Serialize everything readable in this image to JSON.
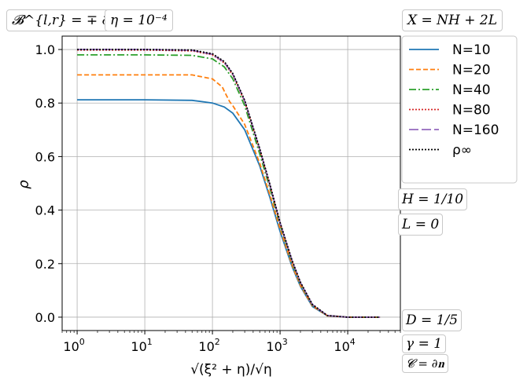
{
  "chart_data": {
    "type": "line",
    "xscale": "log",
    "xlim": [
      0.6,
      60000
    ],
    "ylim": [
      -0.05,
      1.05
    ],
    "xticks": [
      "10^0",
      "10^1",
      "10^2",
      "10^3",
      "10^4"
    ],
    "yticks": [
      "0.0",
      "0.2",
      "0.4",
      "0.6",
      "0.8",
      "1.0"
    ],
    "xlabel": "√(ξ² + η)/√η",
    "ylabel": "ρ",
    "grid": true,
    "legend_position": "outside-right-top",
    "annotations": {
      "top_left": "𝓑^{l,r} = ∓ ∂x",
      "eta": "η = 10⁻⁴",
      "x_def": "X = NH + 2L",
      "H": "H = 1/10",
      "L": "L = 0",
      "D": "D = 1/5",
      "gamma": "γ = 1",
      "C": "𝓒 = ∂𝐧"
    },
    "series": [
      {
        "name": "N=10",
        "color": "#1f77b4",
        "style": "solid",
        "x": [
          1,
          10,
          50,
          100,
          150,
          200,
          300,
          500,
          700,
          1000,
          1500,
          2000,
          3000,
          5000,
          10000,
          30000
        ],
        "values": [
          0.812,
          0.812,
          0.81,
          0.8,
          0.785,
          0.762,
          0.7,
          0.565,
          0.45,
          0.32,
          0.19,
          0.115,
          0.04,
          0.005,
          0.0,
          0.0
        ]
      },
      {
        "name": "N=20",
        "color": "#ff7f0e",
        "style": "dashed",
        "x": [
          1,
          10,
          50,
          100,
          140,
          160,
          180,
          200,
          300,
          500,
          700,
          1000,
          1500,
          2000,
          3000,
          5000,
          10000,
          30000
        ],
        "values": [
          0.905,
          0.905,
          0.905,
          0.89,
          0.86,
          0.83,
          0.805,
          0.79,
          0.72,
          0.575,
          0.46,
          0.33,
          0.195,
          0.118,
          0.042,
          0.005,
          0.0,
          0.0
        ]
      },
      {
        "name": "N=40",
        "color": "#2ca02c",
        "style": "dashdot",
        "x": [
          1,
          10,
          50,
          100,
          150,
          200,
          300,
          500,
          700,
          1000,
          1500,
          2000,
          3000,
          5000,
          10000,
          30000
        ],
        "values": [
          0.98,
          0.98,
          0.978,
          0.965,
          0.935,
          0.89,
          0.79,
          0.61,
          0.485,
          0.345,
          0.205,
          0.125,
          0.045,
          0.006,
          0.0,
          0.0
        ]
      },
      {
        "name": "N=80",
        "color": "#d62728",
        "style": "dotted",
        "x": [
          1,
          10,
          50,
          100,
          150,
          200,
          300,
          500,
          700,
          1000,
          1500,
          2000,
          3000,
          5000,
          10000,
          30000
        ],
        "values": [
          0.998,
          0.998,
          0.995,
          0.98,
          0.95,
          0.905,
          0.805,
          0.625,
          0.495,
          0.35,
          0.21,
          0.128,
          0.046,
          0.006,
          0.0,
          0.0
        ]
      },
      {
        "name": "N=160",
        "color": "#9467bd",
        "style": "longdash",
        "x": [
          1,
          10,
          50,
          100,
          150,
          200,
          300,
          500,
          700,
          1000,
          1500,
          2000,
          3000,
          5000,
          10000,
          30000
        ],
        "values": [
          1.0,
          1.0,
          0.997,
          0.982,
          0.952,
          0.908,
          0.808,
          0.628,
          0.497,
          0.352,
          0.212,
          0.129,
          0.047,
          0.006,
          0.0,
          0.0
        ]
      },
      {
        "name": "ρ∞",
        "color": "#000000",
        "style": "dotted",
        "x": [
          1,
          10,
          50,
          100,
          150,
          200,
          300,
          500,
          700,
          1000,
          1500,
          2000,
          3000,
          5000,
          10000,
          30000
        ],
        "values": [
          1.0,
          1.0,
          0.998,
          0.984,
          0.955,
          0.91,
          0.81,
          0.63,
          0.5,
          0.354,
          0.213,
          0.13,
          0.048,
          0.006,
          0.0,
          0.0
        ]
      }
    ]
  }
}
